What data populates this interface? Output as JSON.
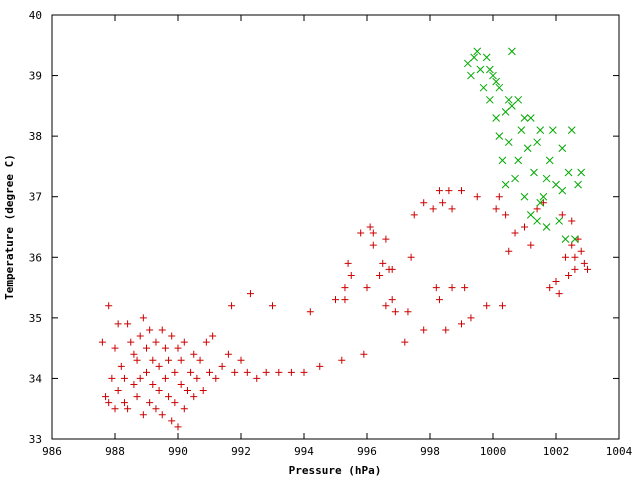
{
  "chart_data": {
    "type": "scatter",
    "xlabel": "Pressure (hPa)",
    "ylabel": "Temperature (degree C)",
    "xlim": [
      986,
      1004
    ],
    "ylim": [
      33,
      40
    ],
    "x_ticks": [
      "986",
      "988",
      "990",
      "992",
      "994",
      "996",
      "998",
      "1000",
      "1002",
      "1004"
    ],
    "y_ticks": [
      "33",
      "34",
      "35",
      "36",
      "37",
      "38",
      "39",
      "40"
    ],
    "grid": false,
    "legend": "none",
    "series": [
      {
        "marker": "plus",
        "color": "#cc0000",
        "points": [
          [
            987.6,
            34.6
          ],
          [
            987.7,
            33.7
          ],
          [
            987.8,
            35.2
          ],
          [
            987.8,
            33.6
          ],
          [
            987.9,
            34.0
          ],
          [
            988.0,
            34.5
          ],
          [
            988.0,
            33.5
          ],
          [
            988.1,
            34.9
          ],
          [
            988.1,
            33.8
          ],
          [
            988.2,
            34.2
          ],
          [
            988.3,
            34.0
          ],
          [
            988.3,
            33.6
          ],
          [
            988.4,
            34.9
          ],
          [
            988.4,
            33.5
          ],
          [
            988.5,
            34.6
          ],
          [
            988.6,
            34.4
          ],
          [
            988.6,
            33.9
          ],
          [
            988.7,
            34.3
          ],
          [
            988.7,
            33.7
          ],
          [
            988.8,
            34.7
          ],
          [
            988.8,
            34.0
          ],
          [
            988.9,
            33.4
          ],
          [
            988.9,
            35.0
          ],
          [
            989.0,
            34.5
          ],
          [
            989.0,
            34.1
          ],
          [
            989.1,
            33.6
          ],
          [
            989.1,
            34.8
          ],
          [
            989.2,
            33.9
          ],
          [
            989.2,
            34.3
          ],
          [
            989.3,
            33.5
          ],
          [
            989.3,
            34.6
          ],
          [
            989.4,
            33.8
          ],
          [
            989.4,
            34.2
          ],
          [
            989.5,
            34.8
          ],
          [
            989.5,
            33.4
          ],
          [
            989.6,
            34.0
          ],
          [
            989.6,
            34.5
          ],
          [
            989.7,
            33.7
          ],
          [
            989.7,
            34.3
          ],
          [
            989.8,
            33.3
          ],
          [
            989.8,
            34.7
          ],
          [
            989.9,
            33.6
          ],
          [
            989.9,
            34.1
          ],
          [
            990.0,
            33.2
          ],
          [
            990.0,
            34.5
          ],
          [
            990.1,
            33.9
          ],
          [
            990.1,
            34.3
          ],
          [
            990.2,
            33.5
          ],
          [
            990.2,
            34.6
          ],
          [
            990.3,
            33.8
          ],
          [
            990.4,
            34.1
          ],
          [
            990.5,
            33.7
          ],
          [
            990.5,
            34.4
          ],
          [
            990.6,
            34.0
          ],
          [
            990.7,
            34.3
          ],
          [
            990.8,
            33.8
          ],
          [
            990.9,
            34.6
          ],
          [
            991.0,
            34.1
          ],
          [
            991.1,
            34.7
          ],
          [
            991.2,
            34.0
          ],
          [
            991.4,
            34.2
          ],
          [
            991.6,
            34.4
          ],
          [
            991.7,
            35.2
          ],
          [
            991.8,
            34.1
          ],
          [
            992.0,
            34.3
          ],
          [
            992.2,
            34.1
          ],
          [
            992.3,
            35.4
          ],
          [
            992.5,
            34.0
          ],
          [
            992.8,
            34.1
          ],
          [
            993.0,
            35.2
          ],
          [
            993.2,
            34.1
          ],
          [
            993.6,
            34.1
          ],
          [
            994.0,
            34.1
          ],
          [
            994.2,
            35.1
          ],
          [
            994.5,
            34.2
          ],
          [
            995.0,
            35.3
          ],
          [
            995.2,
            34.3
          ],
          [
            995.3,
            35.5
          ],
          [
            995.3,
            35.3
          ],
          [
            995.4,
            35.9
          ],
          [
            995.5,
            35.7
          ],
          [
            995.8,
            36.4
          ],
          [
            995.9,
            34.4
          ],
          [
            996.0,
            35.5
          ],
          [
            996.1,
            36.5
          ],
          [
            996.2,
            36.2
          ],
          [
            996.2,
            36.4
          ],
          [
            996.4,
            35.7
          ],
          [
            996.5,
            35.9
          ],
          [
            996.6,
            35.2
          ],
          [
            996.6,
            36.3
          ],
          [
            996.7,
            35.8
          ],
          [
            996.8,
            35.3
          ],
          [
            996.8,
            35.8
          ],
          [
            996.9,
            35.1
          ],
          [
            997.2,
            34.6
          ],
          [
            997.3,
            35.1
          ],
          [
            997.4,
            36.0
          ],
          [
            997.5,
            36.7
          ],
          [
            997.8,
            34.8
          ],
          [
            997.8,
            36.9
          ],
          [
            998.1,
            36.8
          ],
          [
            998.2,
            35.5
          ],
          [
            998.3,
            35.3
          ],
          [
            998.3,
            37.1
          ],
          [
            998.4,
            36.9
          ],
          [
            998.5,
            34.8
          ],
          [
            998.6,
            37.1
          ],
          [
            998.7,
            36.8
          ],
          [
            998.7,
            35.5
          ],
          [
            999.0,
            34.9
          ],
          [
            999.0,
            37.1
          ],
          [
            999.1,
            35.5
          ],
          [
            999.3,
            35.0
          ],
          [
            999.5,
            37.0
          ],
          [
            999.8,
            35.2
          ],
          [
            1000.1,
            36.8
          ],
          [
            1000.2,
            37.0
          ],
          [
            1000.3,
            35.2
          ],
          [
            1000.4,
            36.7
          ],
          [
            1000.5,
            36.1
          ],
          [
            1000.7,
            36.4
          ],
          [
            1001.0,
            36.5
          ],
          [
            1001.2,
            36.2
          ],
          [
            1001.4,
            36.8
          ],
          [
            1001.6,
            36.9
          ],
          [
            1001.8,
            35.5
          ],
          [
            1002.0,
            35.6
          ],
          [
            1002.1,
            35.4
          ],
          [
            1002.2,
            36.7
          ],
          [
            1002.3,
            36.0
          ],
          [
            1002.4,
            35.7
          ],
          [
            1002.5,
            36.2
          ],
          [
            1002.5,
            36.6
          ],
          [
            1002.6,
            35.8
          ],
          [
            1002.6,
            36.0
          ],
          [
            1002.7,
            36.3
          ],
          [
            1002.8,
            36.1
          ],
          [
            1002.9,
            35.9
          ],
          [
            1003.0,
            35.8
          ]
        ]
      },
      {
        "marker": "cross",
        "color": "#00aa00",
        "points": [
          [
            999.2,
            39.2
          ],
          [
            999.3,
            39.0
          ],
          [
            999.4,
            39.3
          ],
          [
            999.5,
            39.4
          ],
          [
            999.6,
            39.1
          ],
          [
            999.7,
            38.8
          ],
          [
            999.8,
            39.3
          ],
          [
            999.9,
            38.6
          ],
          [
            1000.0,
            39.0
          ],
          [
            1000.1,
            38.3
          ],
          [
            1000.2,
            38.8
          ],
          [
            1000.2,
            38.0
          ],
          [
            1000.3,
            37.6
          ],
          [
            1000.4,
            38.4
          ],
          [
            1000.4,
            37.2
          ],
          [
            1000.5,
            37.9
          ],
          [
            1000.6,
            38.5
          ],
          [
            1000.7,
            37.3
          ],
          [
            1000.8,
            38.6
          ],
          [
            1000.8,
            37.6
          ],
          [
            1000.9,
            38.1
          ],
          [
            1001.0,
            37.0
          ],
          [
            1001.1,
            37.8
          ],
          [
            1001.2,
            36.7
          ],
          [
            1001.2,
            38.3
          ],
          [
            1001.3,
            37.4
          ],
          [
            1001.4,
            36.6
          ],
          [
            1001.4,
            37.9
          ],
          [
            1001.5,
            38.1
          ],
          [
            1001.6,
            37.0
          ],
          [
            1001.7,
            36.5
          ],
          [
            1001.8,
            37.6
          ],
          [
            1001.9,
            38.1
          ],
          [
            1002.0,
            37.2
          ],
          [
            1002.1,
            36.6
          ],
          [
            1002.2,
            37.8
          ],
          [
            1002.3,
            36.3
          ],
          [
            1002.4,
            37.4
          ],
          [
            1002.5,
            38.1
          ],
          [
            1002.6,
            36.3
          ],
          [
            1002.7,
            37.2
          ],
          [
            1002.8,
            37.4
          ],
          [
            1000.6,
            39.4
          ],
          [
            1000.1,
            38.9
          ],
          [
            999.9,
            39.1
          ],
          [
            1000.5,
            38.6
          ],
          [
            1001.0,
            38.3
          ],
          [
            1001.7,
            37.3
          ],
          [
            1002.2,
            37.1
          ],
          [
            1001.5,
            36.9
          ]
        ]
      }
    ]
  }
}
